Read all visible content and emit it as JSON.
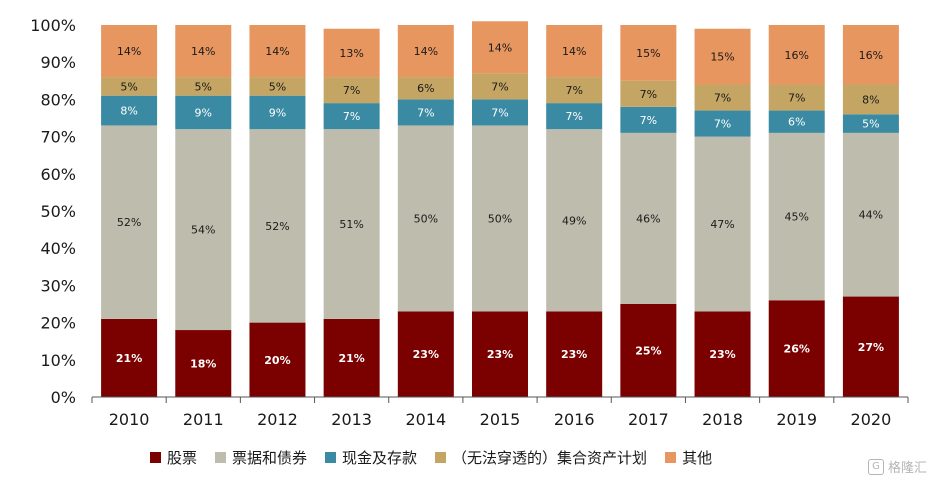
{
  "chart_data": {
    "type": "bar",
    "stacked": true,
    "percent": true,
    "categories": [
      "2010",
      "2011",
      "2012",
      "2013",
      "2014",
      "2015",
      "2016",
      "2017",
      "2018",
      "2019",
      "2020"
    ],
    "ylim": [
      0,
      100
    ],
    "yticks": [
      "0%",
      "10%",
      "20%",
      "30%",
      "40%",
      "50%",
      "60%",
      "70%",
      "80%",
      "90%",
      "100%"
    ],
    "series": [
      {
        "name": "股票",
        "color": "#7b0000",
        "label_color": "#ffffff",
        "values": [
          21,
          18,
          20,
          21,
          23,
          23,
          23,
          25,
          23,
          26,
          27
        ]
      },
      {
        "name": "票据和债券",
        "color": "#bebdad",
        "label_color": "#1a1a1a",
        "values": [
          52,
          54,
          52,
          51,
          50,
          50,
          49,
          46,
          47,
          45,
          44
        ]
      },
      {
        "name": "现金及存款",
        "color": "#3a8aa3",
        "label_color": "#ffffff",
        "values": [
          8,
          9,
          9,
          7,
          7,
          7,
          7,
          7,
          7,
          6,
          5
        ]
      },
      {
        "name": "（无法穿透的）集合资产计划",
        "color": "#c4a564",
        "label_color": "#1a1a1a",
        "values": [
          5,
          5,
          5,
          7,
          6,
          7,
          7,
          7,
          7,
          7,
          8
        ]
      },
      {
        "name": "其他",
        "color": "#e8965f",
        "label_color": "#1a1a1a",
        "values": [
          14,
          14,
          14,
          13,
          14,
          14,
          14,
          15,
          15,
          16,
          16
        ]
      }
    ],
    "legend_position": "bottom",
    "grid": false
  },
  "watermark": {
    "text": "格隆汇",
    "icon": "gelonghui-logo-icon"
  }
}
